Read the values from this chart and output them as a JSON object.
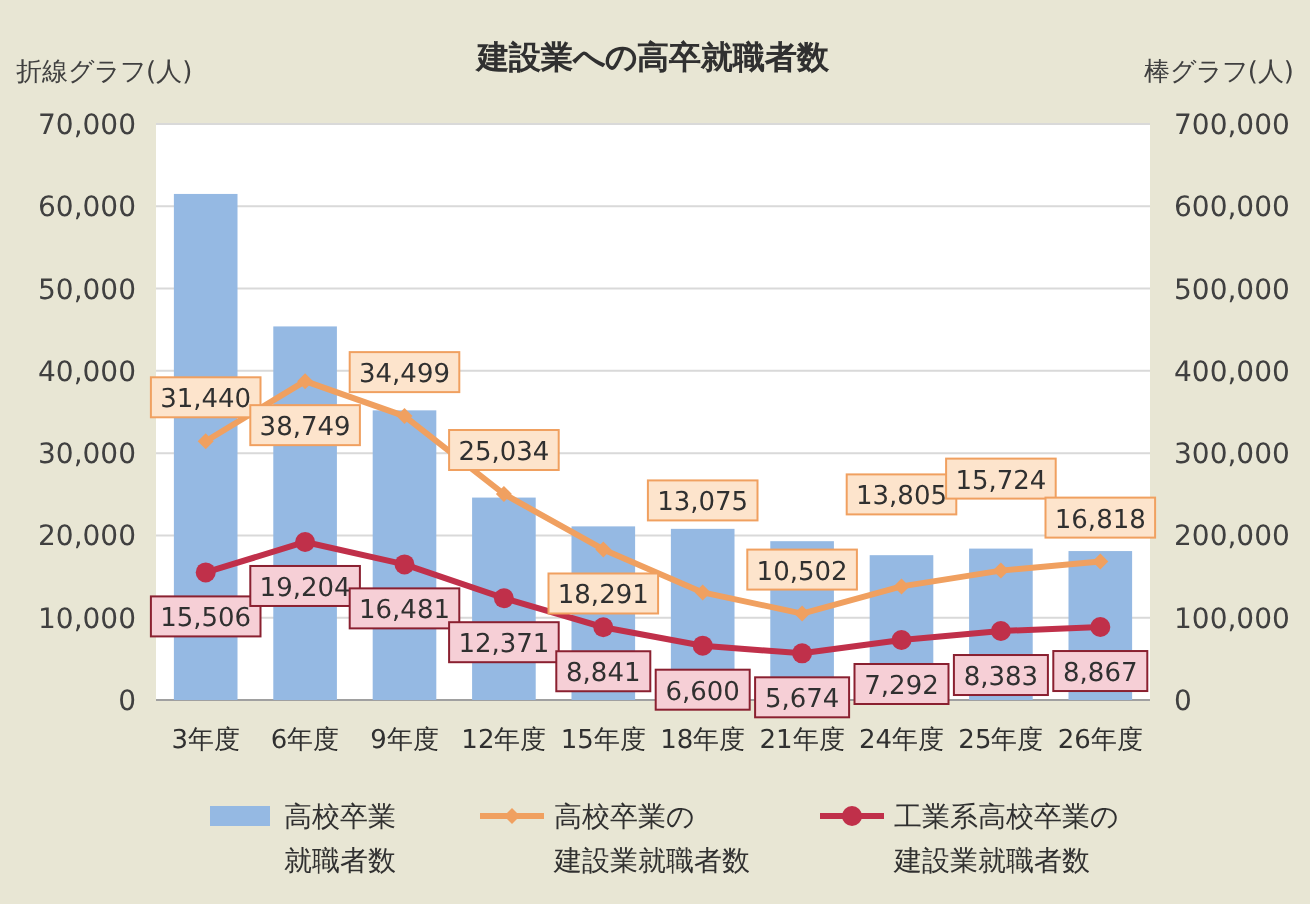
{
  "chart_data": {
    "type": "bar",
    "title": "建設業への高卒就職者数",
    "ylabel": "折線グラフ(人)",
    "y2label": "棒グラフ(人)",
    "categories": [
      "3年度",
      "6年度",
      "9年度",
      "12年度",
      "15年度",
      "18年度",
      "21年度",
      "24年度",
      "25年度",
      "26年度"
    ],
    "series": [
      {
        "name": "高校卒業就職者数",
        "axis": "y2",
        "color": "#95b9e3",
        "values": [
          615000,
          454000,
          352000,
          246000,
          211000,
          208000,
          193000,
          176000,
          184000,
          181000
        ]
      },
      {
        "name": "高校卒業の建設業就職者数",
        "type": "line",
        "color": "#f0a060",
        "marker": "diamond",
        "values": [
          31440,
          38749,
          34499,
          25034,
          18291,
          13075,
          10502,
          13805,
          15724,
          16818
        ],
        "value_labels": [
          "31,440",
          "38,749",
          "34,499",
          "25,034",
          "18,291",
          "13,075",
          "10,502",
          "13,805",
          "15,724",
          "16,818"
        ]
      },
      {
        "name": "工業系高校卒業の建設業就職者数",
        "type": "line",
        "color": "#c0304a",
        "marker": "circle",
        "values": [
          15506,
          19204,
          16481,
          12371,
          8841,
          6600,
          5674,
          7292,
          8383,
          8867
        ],
        "value_labels": [
          "15,506",
          "19,204",
          "16,481",
          "12,371",
          "8,841",
          "6,600",
          "5,674",
          "7,292",
          "8,383",
          "8,867"
        ]
      }
    ],
    "ylim": [
      0,
      70000
    ],
    "yticks": [
      0,
      {
        "value": 10000,
        "label": "10,000"
      },
      {
        "value": 20000,
        "label": "20,000"
      },
      {
        "value": 30000,
        "label": "30,000"
      },
      {
        "value": 40000,
        "label": "40,000"
      },
      {
        "value": 50000,
        "label": "50,000"
      },
      {
        "value": 60000,
        "label": "60,000"
      },
      {
        "value": 70000,
        "label": "70,000"
      }
    ],
    "y2lim": [
      0,
      700000
    ],
    "y2ticks": [
      0,
      {
        "value": 100000,
        "label": "100,000"
      },
      {
        "value": 200000,
        "label": "200,000"
      },
      {
        "value": 300000,
        "label": "300,000"
      },
      {
        "value": 400000,
        "label": "400,000"
      },
      {
        "value": 500000,
        "label": "500,000"
      },
      {
        "value": 600000,
        "label": "600,000"
      },
      {
        "value": 700000,
        "label": "700,000"
      }
    ],
    "grid": "y",
    "legend": "bottom"
  }
}
